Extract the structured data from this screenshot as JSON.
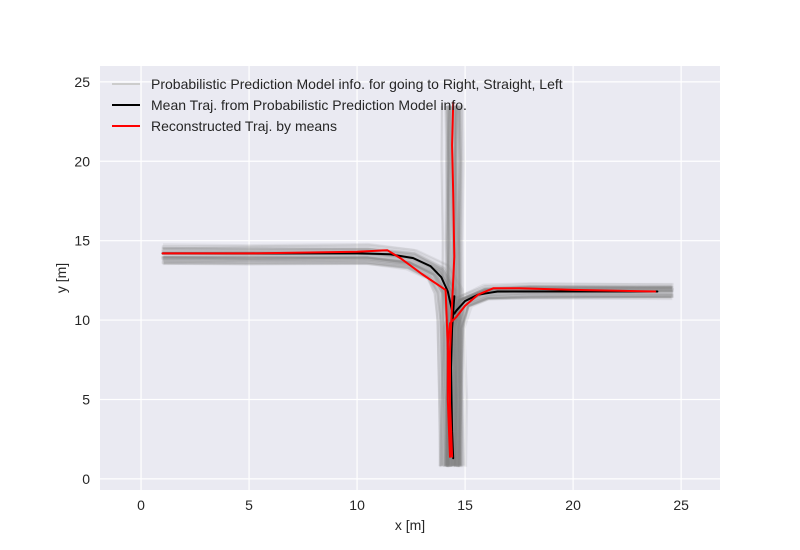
{
  "chart_data": {
    "type": "line",
    "title": "",
    "xlabel": "x [m]",
    "ylabel": "y [m]",
    "xlim": [
      -1.9,
      26.8
    ],
    "ylim": [
      -0.7,
      26.0
    ],
    "xticks": [
      0,
      5,
      10,
      15,
      20,
      25
    ],
    "yticks": [
      0,
      5,
      10,
      15,
      20,
      25
    ],
    "grid": true,
    "style": "seaborn-darkgrid",
    "legend_position": "top-left",
    "series": [
      {
        "name": "Probabilistic Prediction Model info. for going to Right, Straight, Left",
        "color": "#808080",
        "kind": "sampled trajectory bundle (semi-transparent)",
        "branches": {
          "left": [
            [
              14.4,
              0.8
            ],
            [
              14.4,
              5
            ],
            [
              14.3,
              10
            ],
            [
              14.2,
              11.8
            ],
            [
              13.7,
              13.0
            ],
            [
              12.5,
              13.8
            ],
            [
              10.5,
              14.1
            ],
            [
              5,
              14.1
            ],
            [
              1.0,
              14.1
            ]
          ],
          "straight": [
            [
              14.5,
              0.8
            ],
            [
              14.5,
              5
            ],
            [
              14.5,
              10
            ],
            [
              14.5,
              15
            ],
            [
              14.5,
              20
            ],
            [
              14.5,
              23.5
            ]
          ],
          "right": [
            [
              14.4,
              0.8
            ],
            [
              14.4,
              5
            ],
            [
              14.5,
              9.5
            ],
            [
              14.9,
              11.1
            ],
            [
              16.0,
              11.7
            ],
            [
              18,
              11.8
            ],
            [
              24.6,
              11.8
            ]
          ]
        },
        "bundle_half_widths": {
          "left": 0.7,
          "straight": 0.55,
          "right": 0.6
        }
      },
      {
        "name": "Mean Traj. from Probabilistic Prediction Model info.",
        "color": "#000000",
        "x": [
          1.0,
          5,
          10,
          11.5,
          12.6,
          13.4,
          13.9,
          14.2,
          14.4,
          14.5,
          14.6,
          15.0,
          15.6,
          16.5,
          18,
          20,
          22,
          23.9
        ],
        "y": [
          14.2,
          14.2,
          14.2,
          14.15,
          13.9,
          13.4,
          12.7,
          11.8,
          10.6,
          10.4,
          10.6,
          11.2,
          11.6,
          11.8,
          11.8,
          11.8,
          11.8,
          11.8
        ]
      },
      {
        "name": "Mean Traj. from Probabilistic Prediction Model info.",
        "color": "#000000",
        "x": [
          14.45,
          14.4,
          14.35,
          14.4,
          14.5
        ],
        "y": [
          1.3,
          3.0,
          7.0,
          9.5,
          11.5
        ]
      },
      {
        "name": "Reconstructed Traj. by means",
        "color": "#ff0000",
        "x": [
          14.3,
          14.3,
          14.3,
          14.4,
          14.5,
          14.45,
          14.4,
          14.45
        ],
        "y": [
          1.4,
          4.0,
          8.0,
          11.0,
          14.0,
          18.0,
          21.0,
          23.7
        ]
      },
      {
        "name": "Reconstructed Traj. by means",
        "color": "#ff0000",
        "x": [
          14.3,
          14.2,
          14.2,
          14.3,
          14.6,
          15.0,
          15.6,
          16.3,
          17.5,
          20,
          23.8
        ],
        "y": [
          1.4,
          5.0,
          8.5,
          9.8,
          10.2,
          10.9,
          11.6,
          12.0,
          12.0,
          11.9,
          11.8
        ]
      },
      {
        "name": "Reconstructed Traj. by means",
        "color": "#ff0000",
        "x": [
          14.4,
          14.1,
          13.0,
          12.0,
          11.4,
          10.0,
          5.0,
          1.0
        ],
        "y": [
          1.4,
          11.9,
          12.9,
          13.9,
          14.4,
          14.3,
          14.2,
          14.2
        ]
      }
    ],
    "legend": [
      {
        "label": "Probabilistic Prediction Model info. for going to Right, Straight, Left",
        "color": "#cccccc"
      },
      {
        "label": "Mean Traj. from Probabilistic Prediction Model info.",
        "color": "#000000"
      },
      {
        "label": "Reconstructed Traj. by means",
        "color": "#ff0000"
      }
    ]
  }
}
